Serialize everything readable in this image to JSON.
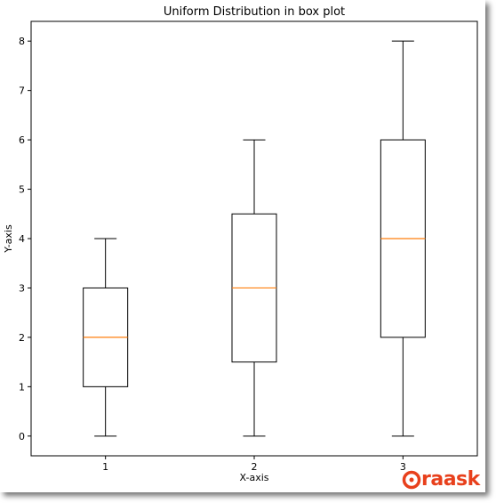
{
  "chart_data": {
    "type": "boxplot",
    "title": "Uniform Distribution in box plot",
    "xlabel": "X-axis",
    "ylabel": "Y-axis",
    "categories": [
      "1",
      "2",
      "3"
    ],
    "boxes": [
      {
        "whislo": 0,
        "q1": 1,
        "med": 2,
        "q3": 3,
        "whishi": 4
      },
      {
        "whislo": 0,
        "q1": 1.5,
        "med": 3,
        "q3": 4.5,
        "whishi": 6
      },
      {
        "whislo": 0,
        "q1": 2,
        "med": 4,
        "q3": 6,
        "whishi": 8
      }
    ],
    "yticks": [
      "0",
      "1",
      "2",
      "3",
      "4",
      "5",
      "6",
      "7",
      "8"
    ],
    "ylim": [
      -0.4,
      8.4
    ],
    "xlim": [
      0.5,
      3.5
    ],
    "grid": false,
    "colors": {
      "box": "#000000",
      "median": "#ff7f0e"
    }
  },
  "watermark": {
    "text": "raask",
    "icon": "oraask-logo-icon",
    "color": "#e8401c"
  }
}
